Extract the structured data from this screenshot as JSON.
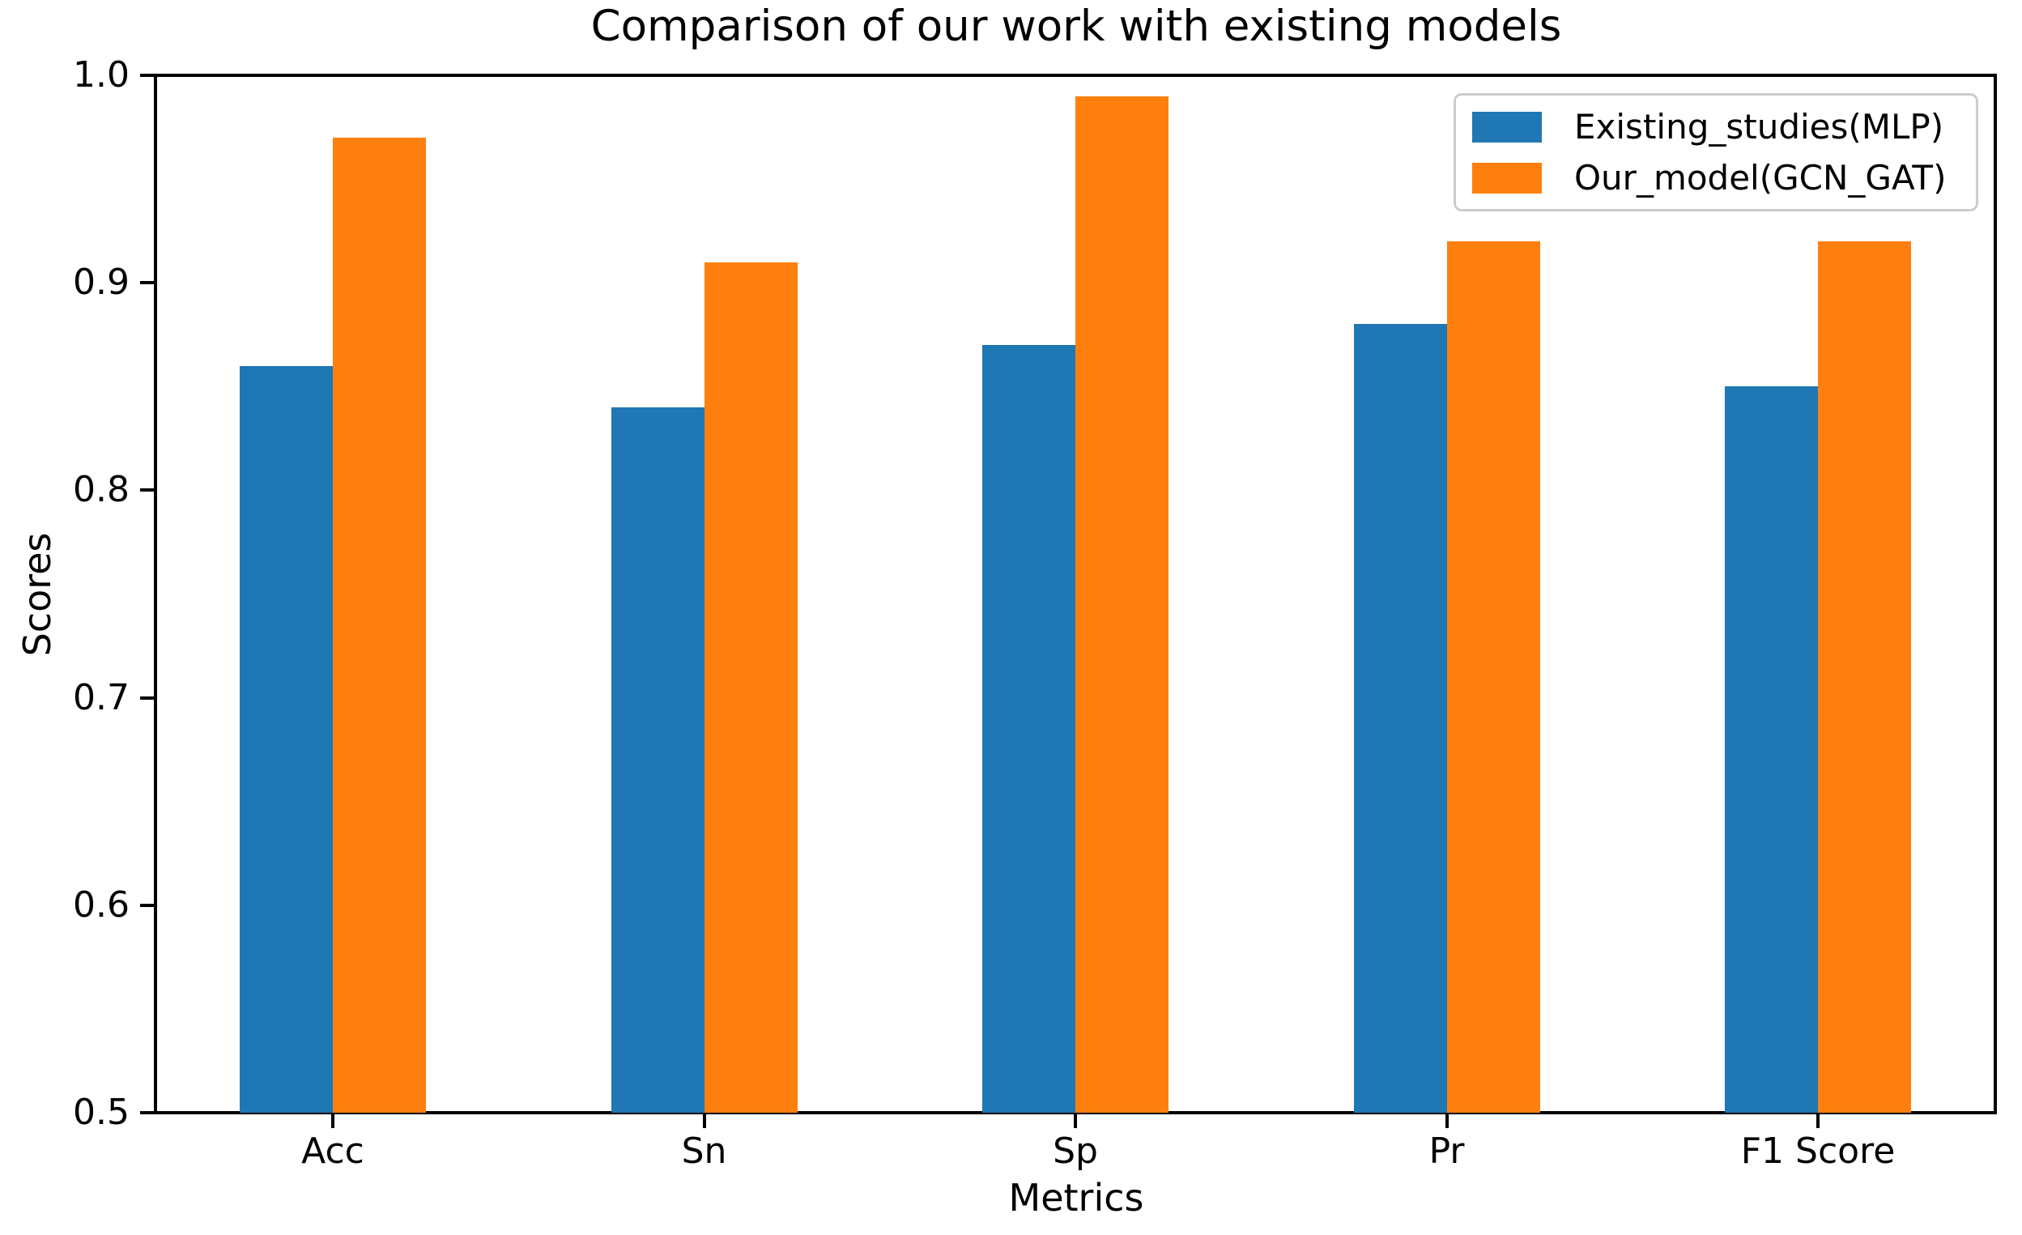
{
  "figure": {
    "background_color": "#ffffff",
    "axis_color": "#000000",
    "legend_border_color": "#cccccc"
  },
  "chart_data": {
    "type": "bar",
    "title": "Comparison of our work with existing models",
    "xlabel": "Metrics",
    "ylabel": "Scores",
    "categories": [
      "Acc",
      "Sn",
      "Sp",
      "Pr",
      "F1 Score"
    ],
    "series": [
      {
        "name": "Existing_studies(MLP)",
        "color": "#1f77b4",
        "values": [
          0.86,
          0.84,
          0.87,
          0.88,
          0.85
        ]
      },
      {
        "name": "Our_model(GCN_GAT)",
        "color": "#ff7f0e",
        "values": [
          0.97,
          0.91,
          0.99,
          0.92,
          0.92
        ]
      }
    ],
    "ylim": [
      0.5,
      1.0
    ],
    "yticks": [
      0.5,
      0.6,
      0.7,
      0.8,
      0.9,
      1.0
    ],
    "ytick_labels": [
      "0.5",
      "0.6",
      "0.7",
      "0.8",
      "0.9",
      "1.0"
    ],
    "grid": false,
    "legend_position": "upper right"
  }
}
